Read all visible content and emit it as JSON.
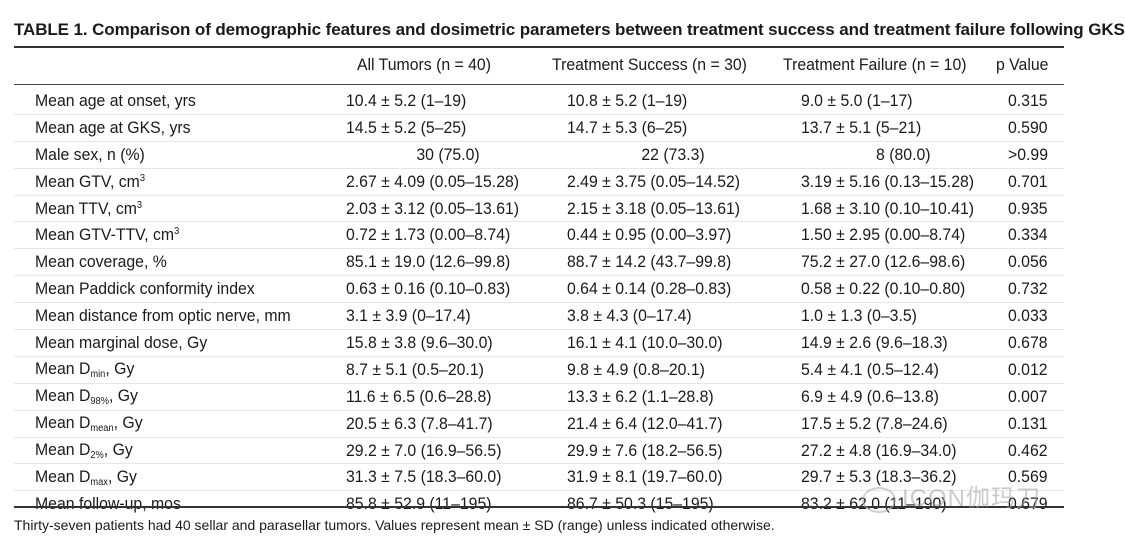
{
  "title": "TABLE 1. Comparison of demographic features and dosimetric parameters between treatment success and treatment failure following GKS",
  "columns": [
    "All Tumors (n = 40)",
    "Treatment Success (n = 30)",
    "Treatment Failure (n = 10)",
    "p Value"
  ],
  "rows": [
    {
      "label": "Mean age at onset, yrs",
      "v": [
        "10.4 ± 5.2 (1–19)",
        "10.8 ± 5.2 (1–19)",
        "9.0 ± 5.0 (1–17)",
        "0.315"
      ]
    },
    {
      "label": "Mean age at GKS, yrs",
      "v": [
        "14.5 ± 5.2 (5–25)",
        "14.7 ± 5.3 (6–25)",
        "13.7 ± 5.1 (5–21)",
        "0.590"
      ]
    },
    {
      "label": "Male sex, n (%)",
      "v": [
        "30 (75.0)",
        "22 (73.3)",
        "8 (80.0)",
        ">0.99"
      ]
    },
    {
      "label": "Mean GTV, cm",
      "unit_sup": "3",
      "v": [
        "2.67 ± 4.09 (0.05–15.28)",
        "2.49 ± 3.75 (0.05–14.52)",
        "3.19 ± 5.16 (0.13–15.28)",
        "0.701"
      ]
    },
    {
      "label": "Mean TTV, cm",
      "unit_sup": "3",
      "v": [
        "2.03 ± 3.12 (0.05–13.61)",
        "2.15 ± 3.18 (0.05–13.61)",
        "1.68 ± 3.10 (0.10–10.41)",
        "0.935"
      ]
    },
    {
      "label": "Mean GTV-TTV, cm",
      "unit_sup": "3",
      "v": [
        "0.72 ± 1.73 (0.00–8.74)",
        "0.44 ± 0.95 (0.00–3.97)",
        "1.50 ± 2.95 (0.00–8.74)",
        "0.334"
      ]
    },
    {
      "label": "Mean coverage, %",
      "v": [
        "85.1 ± 19.0 (12.6–99.8)",
        "88.7 ± 14.2 (43.7–99.8)",
        "75.2 ± 27.0 (12.6–98.6)",
        "0.056"
      ]
    },
    {
      "label": "Mean Paddick conformity index",
      "v": [
        "0.63 ± 0.16 (0.10–0.83)",
        "0.64 ± 0.14 (0.28–0.83)",
        "0.58 ± 0.22 (0.10–0.80)",
        "0.732"
      ]
    },
    {
      "label": "Mean distance from optic nerve, mm",
      "v": [
        "3.1 ± 3.9 (0–17.4)",
        "3.8 ± 4.3 (0–17.4)",
        "1.0 ± 1.3 (0–3.5)",
        "0.033"
      ]
    },
    {
      "label": "Mean marginal dose, Gy",
      "v": [
        "15.8 ± 3.8 (9.6–30.0)",
        "16.1 ± 4.1 (10.0–30.0)",
        "14.9 ± 2.6 (9.6–18.3)",
        "0.678"
      ]
    },
    {
      "label_pre": "Mean D",
      "label_sub": "min",
      "label_post": ", Gy",
      "v": [
        "8.7 ± 5.1 (0.5–20.1)",
        "9.8 ± 4.9 (0.8–20.1)",
        "5.4 ± 4.1 (0.5–12.4)",
        "0.012"
      ]
    },
    {
      "label_pre": "Mean D",
      "label_sub": "98%",
      "label_post": ", Gy",
      "v": [
        "11.6 ± 6.5 (0.6–28.8)",
        "13.3 ± 6.2 (1.1–28.8)",
        "6.9 ± 4.9 (0.6–13.8)",
        "0.007"
      ]
    },
    {
      "label_pre": "Mean D",
      "label_sub": "mean",
      "label_post": ", Gy",
      "v": [
        "20.5 ± 6.3 (7.8–41.7)",
        "21.4 ± 6.4 (12.0–41.7)",
        "17.5 ± 5.2 (7.8–24.6)",
        "0.131"
      ]
    },
    {
      "label_pre": "Mean D",
      "label_sub": "2%",
      "label_post": ", Gy",
      "v": [
        "29.2 ± 7.0 (16.9–56.5)",
        "29.9 ± 7.6 (18.2–56.5)",
        "27.2 ± 4.8 (16.9–34.0)",
        "0.462"
      ]
    },
    {
      "label_pre": "Mean D",
      "label_sub": "max",
      "label_post": ", Gy",
      "v": [
        "31.3 ± 7.5 (18.3–60.0)",
        "31.9 ± 8.1 (19.7–60.0)",
        "29.7 ± 5.3 (18.3–36.2)",
        "0.569"
      ]
    },
    {
      "label": "Mean follow-up, mos",
      "v": [
        "85.8 ± 52.9 (11–195)",
        "86.7 ± 50.3 (15–195)",
        "83.2 ± 62.0 (11–190)",
        "0.679"
      ]
    }
  ],
  "footnote": "Thirty-seven patients had 40 sellar and parasellar tumors. Values represent mean ± SD (range) unless indicated otherwise.",
  "watermark": "ICON伽玛刀"
}
